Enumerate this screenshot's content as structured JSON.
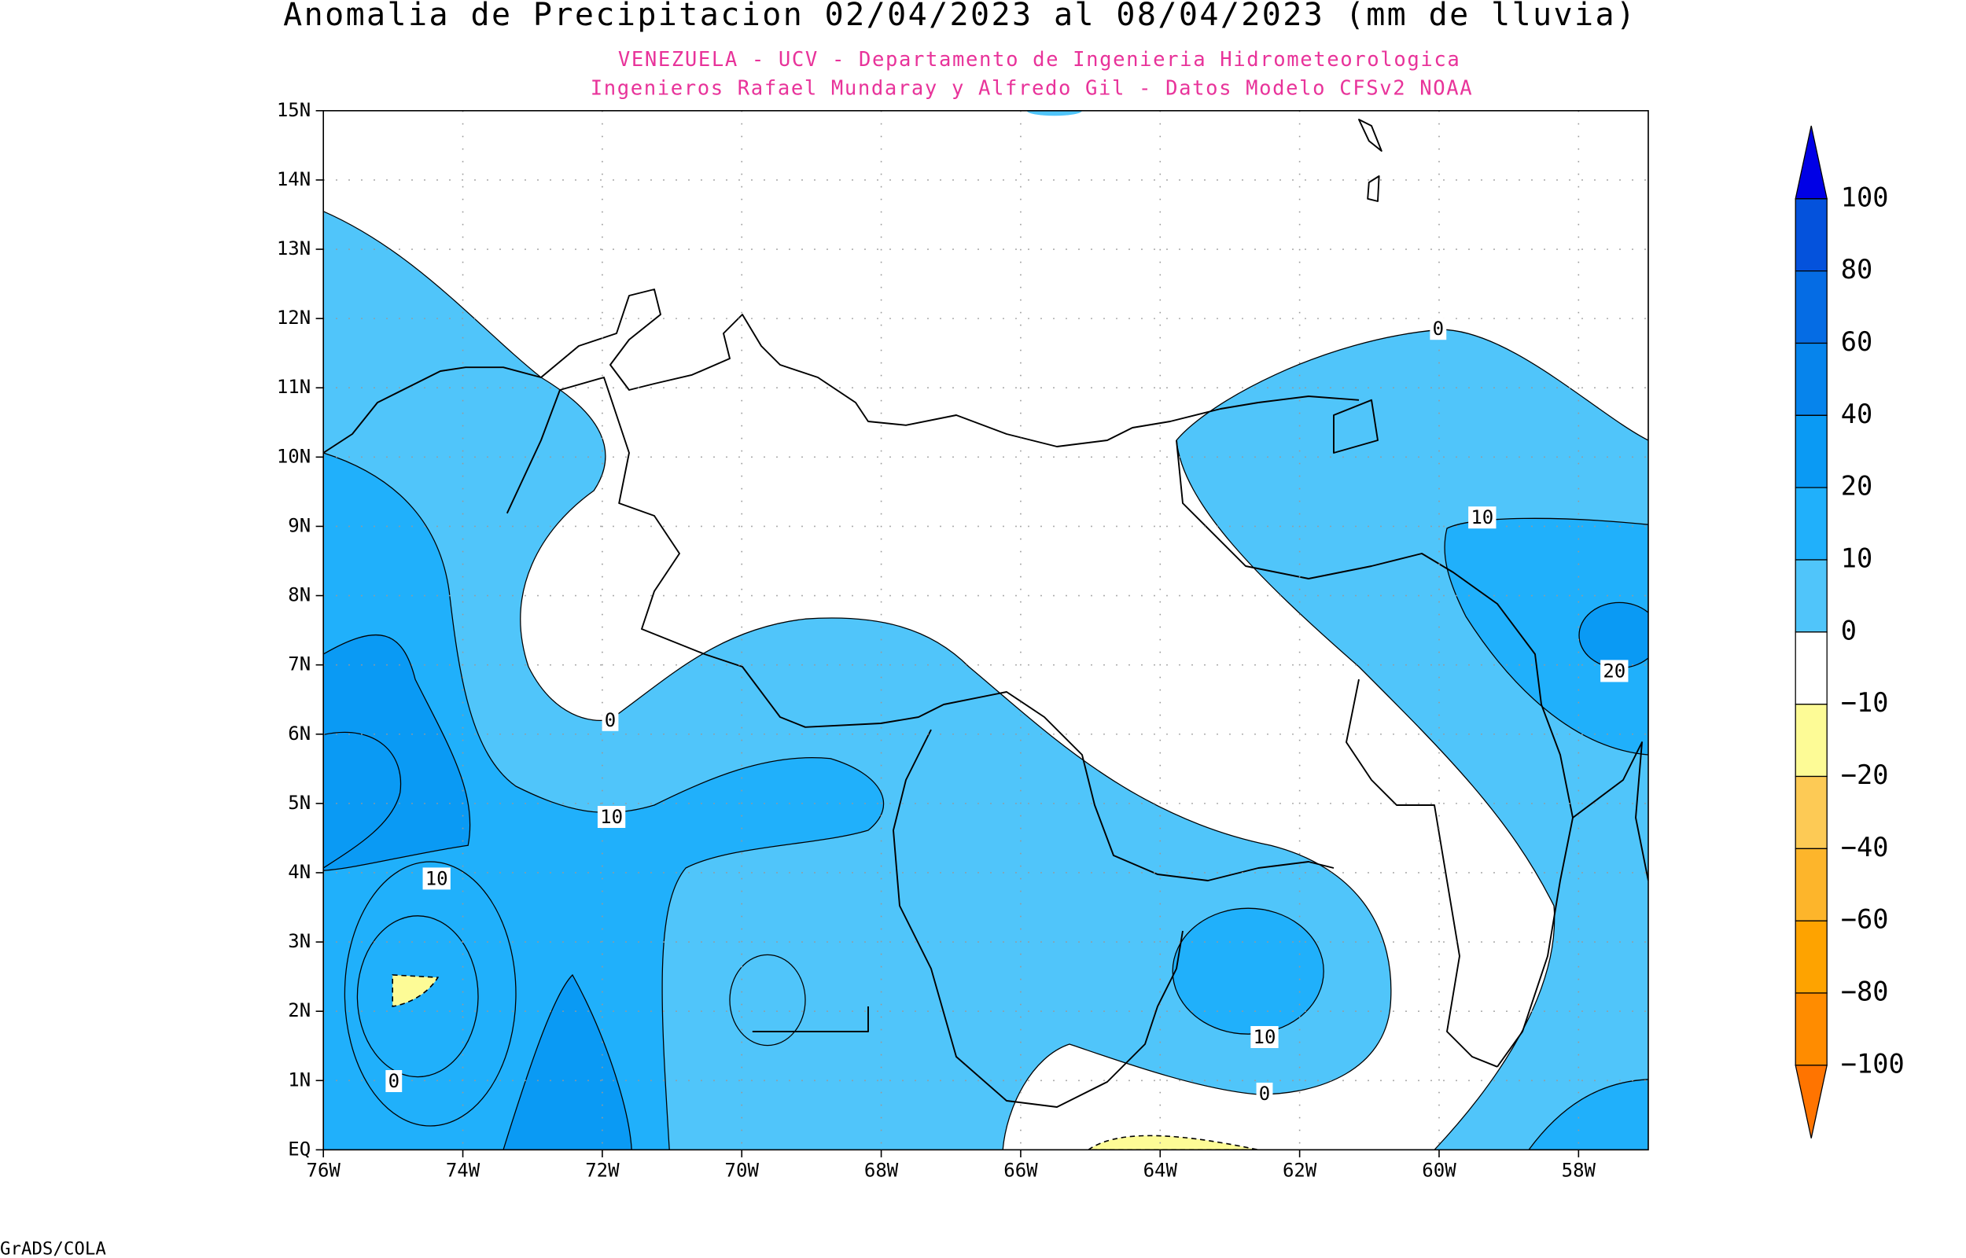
{
  "title": "Anomalia de Precipitacion 02/04/2023 al 08/04/2023 (mm de lluvia)",
  "subtitle": [
    "VENEZUELA - UCV - Departamento de Ingenieria Hidrometeorologica",
    "Ingenieros Rafael Mundaray y Alfredo Gil - Datos Modelo CFSv2 NOAA"
  ],
  "credit": "GrADS/COLA",
  "map": {
    "lon_ticks": [
      {
        "value": -76,
        "label": "76W"
      },
      {
        "value": -74,
        "label": "74W"
      },
      {
        "value": -72,
        "label": "72W"
      },
      {
        "value": -70,
        "label": "70W"
      },
      {
        "value": -68,
        "label": "68W"
      },
      {
        "value": -66,
        "label": "66W"
      },
      {
        "value": -64,
        "label": "64W"
      },
      {
        "value": -62,
        "label": "62W"
      },
      {
        "value": -60,
        "label": "60W"
      },
      {
        "value": -58,
        "label": "58W"
      }
    ],
    "lat_ticks": [
      {
        "value": 0,
        "label": "EQ"
      },
      {
        "value": 1,
        "label": "1N"
      },
      {
        "value": 2,
        "label": "2N"
      },
      {
        "value": 3,
        "label": "3N"
      },
      {
        "value": 4,
        "label": "4N"
      },
      {
        "value": 5,
        "label": "5N"
      },
      {
        "value": 6,
        "label": "6N"
      },
      {
        "value": 7,
        "label": "7N"
      },
      {
        "value": 8,
        "label": "8N"
      },
      {
        "value": 9,
        "label": "9N"
      },
      {
        "value": 10,
        "label": "10N"
      },
      {
        "value": 11,
        "label": "11N"
      },
      {
        "value": 12,
        "label": "12N"
      },
      {
        "value": 13,
        "label": "13N"
      },
      {
        "value": 14,
        "label": "14N"
      },
      {
        "value": 15,
        "label": "15N"
      }
    ],
    "contour_labels": [
      0,
      10,
      20,
      0,
      10,
      10,
      0,
      10,
      0
    ]
  },
  "colorbar": {
    "levels": [
      100,
      80,
      60,
      40,
      20,
      10,
      0,
      {
        "value": -10,
        "label": "−10"
      },
      {
        "value": -20,
        "label": "−20"
      },
      {
        "value": -40,
        "label": "−40"
      },
      {
        "value": -60,
        "label": "−60"
      },
      {
        "value": -80,
        "label": "−80"
      },
      {
        "value": -100,
        "label": "−100"
      }
    ],
    "colors": [
      "#0000e6",
      "#0452dc",
      "#056ce4",
      "#0684ec",
      "#0a9af4",
      "#20b0fb",
      "#50c5fa",
      "#ffffff",
      "#fdfb96",
      "#fdca55",
      "#fdb52b",
      "#fea300",
      "#ff8c00",
      "#ff7400"
    ]
  }
}
